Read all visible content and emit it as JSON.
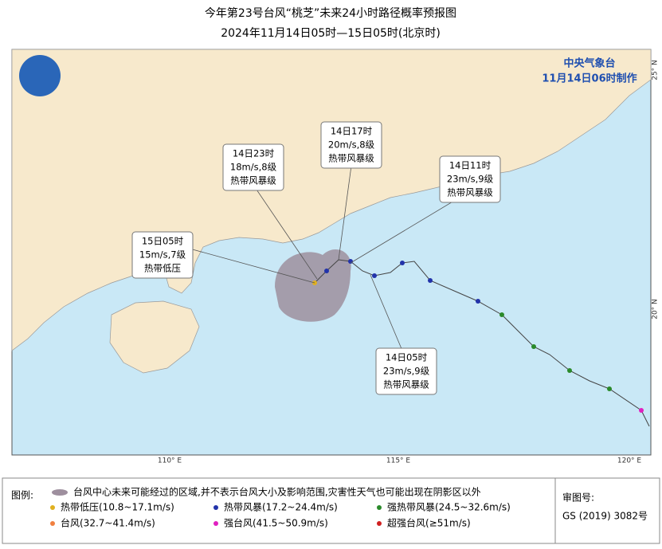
{
  "header": {
    "title": "今年第23号台风“桃芝”未来24小时路径概率预报图",
    "subtitle": "2024年11月14日05时—15日05时(北京时)"
  },
  "agency": {
    "name": "中央气象台",
    "made": "11月14日06时制作"
  },
  "axes": {
    "lat": [
      "25° N",
      "20° N"
    ],
    "lon": [
      "110° E",
      "115° E",
      "120° E"
    ]
  },
  "callouts": [
    {
      "time": "14日23时",
      "wind": "18m/s,8级",
      "level": "热带风暴级"
    },
    {
      "time": "14日17时",
      "wind": "20m/s,8级",
      "level": "热带风暴级"
    },
    {
      "time": "14日11时",
      "wind": "23m/s,9级",
      "level": "热带风暴级"
    },
    {
      "time": "15日05时",
      "wind": "15m/s,7级",
      "level": "热带低压"
    },
    {
      "time": "14日05时",
      "wind": "23m/s,9级",
      "level": "热带风暴级"
    }
  ],
  "legend": {
    "title": "图例:",
    "area": "台风中心未来可能经过的区域,并不表示台风大小及影响范围,灾害性天气也可能出现在阴影区以外",
    "items": [
      "热带低压(10.8~17.1m/s)",
      "热带风暴(17.2~24.4m/s)",
      "强热带风暴(24.5~32.6m/s)",
      "台风(32.7~41.4m/s)",
      "强台风(41.5~50.9m/s)",
      "超强台风(≥51m/s)"
    ]
  },
  "approval": {
    "label": "审图号:",
    "number": "GS (2019) 3082号"
  }
}
